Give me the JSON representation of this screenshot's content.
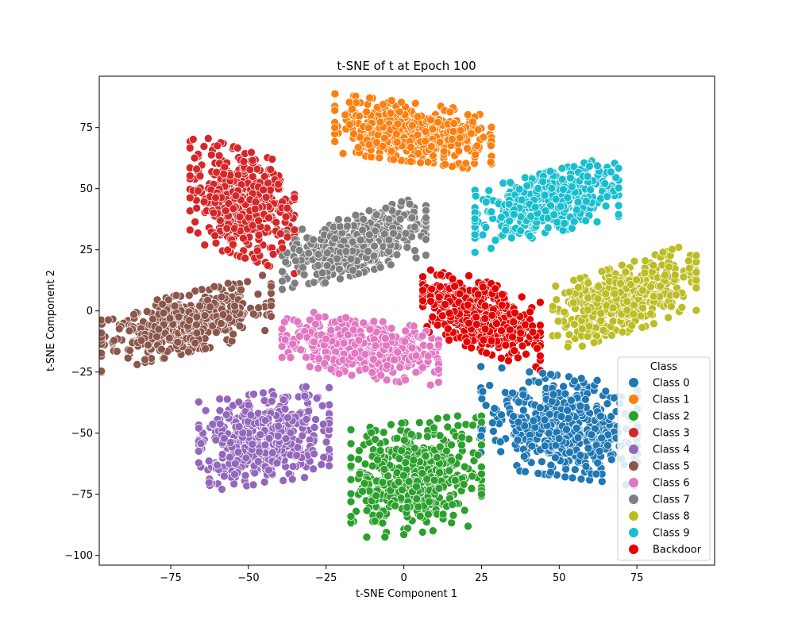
{
  "chart_data": {
    "type": "scatter",
    "title": "t-SNE of t at Epoch 100",
    "xlabel": "t-SNE Component 1",
    "ylabel": "t-SNE Component 2",
    "xlim": [
      -98,
      100
    ],
    "ylim": [
      -104,
      96
    ],
    "x_ticks": [
      -75,
      -50,
      -25,
      0,
      25,
      50,
      75
    ],
    "y_ticks": [
      -100,
      -75,
      -50,
      -25,
      0,
      25,
      50,
      75
    ],
    "x_tick_labels": [
      "−75",
      "−50",
      "−25",
      "0",
      "25",
      "50",
      "75"
    ],
    "y_tick_labels": [
      "−100",
      "−75",
      "−50",
      "−25",
      "0",
      "25",
      "50",
      "75"
    ],
    "grid": false,
    "legend": {
      "title": "Class",
      "placement": "lower-right"
    },
    "series": [
      {
        "name": "Class 0",
        "color": "#1f77b4",
        "cx": 50,
        "cy": -47,
        "sx": 12,
        "sy": 10,
        "rho": -0.2,
        "n": 520
      },
      {
        "name": "Class 1",
        "color": "#ff7f0e",
        "cx": 3,
        "cy": 73,
        "sx": 12,
        "sy": 6,
        "rho": -0.3,
        "n": 500
      },
      {
        "name": "Class 2",
        "color": "#2ca02c",
        "cx": 4,
        "cy": -68,
        "sx": 10,
        "sy": 11,
        "rho": 0.15,
        "n": 500
      },
      {
        "name": "Class 3",
        "color": "#d62728",
        "cx": -52,
        "cy": 44,
        "sx": 8,
        "sy": 11,
        "rho": -0.3,
        "n": 480
      },
      {
        "name": "Class 4",
        "color": "#9467bd",
        "cx": -45,
        "cy": -52,
        "sx": 10,
        "sy": 9,
        "rho": 0.2,
        "n": 460
      },
      {
        "name": "Class 5",
        "color": "#8c564b",
        "cx": -70,
        "cy": -5,
        "sx": 13,
        "sy": 7,
        "rho": 0.55,
        "n": 480
      },
      {
        "name": "Class 6",
        "color": "#e377c2",
        "cx": -14,
        "cy": -15,
        "sx": 12,
        "sy": 6,
        "rho": -0.35,
        "n": 480
      },
      {
        "name": "Class 7",
        "color": "#7f7f7f",
        "cx": -16,
        "cy": 27,
        "sx": 11,
        "sy": 7,
        "rho": 0.55,
        "n": 480
      },
      {
        "name": "Class 8",
        "color": "#bcbd22",
        "cx": 71,
        "cy": 5,
        "sx": 11,
        "sy": 8,
        "rho": 0.55,
        "n": 480
      },
      {
        "name": "Class 9",
        "color": "#17becf",
        "cx": 46,
        "cy": 44,
        "sx": 11,
        "sy": 7,
        "rho": 0.5,
        "n": 480
      },
      {
        "name": "Backdoor",
        "color": "#e60000",
        "cx": 25,
        "cy": -2,
        "sx": 9,
        "sy": 8,
        "rho": -0.5,
        "n": 480
      }
    ]
  }
}
